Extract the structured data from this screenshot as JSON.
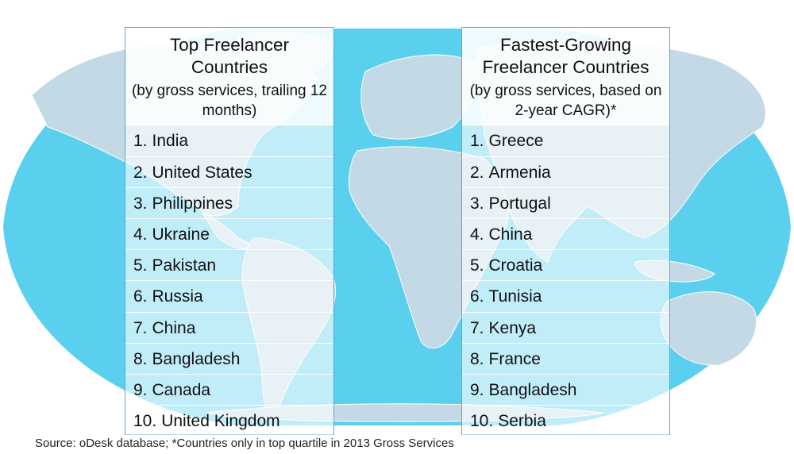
{
  "colors": {
    "ocean": "#5ad0ee",
    "land": "#c3d9e5",
    "panel_border": "#5aa6d6"
  },
  "left_panel": {
    "title": "Top Freelancer Countries",
    "subtitle": "(by gross services, trailing 12 months)",
    "items": [
      {
        "rank": "1.",
        "country": "India"
      },
      {
        "rank": "2.",
        "country": "United States"
      },
      {
        "rank": "3.",
        "country": "Philippines"
      },
      {
        "rank": "4.",
        "country": "Ukraine"
      },
      {
        "rank": "5.",
        "country": "Pakistan"
      },
      {
        "rank": "6.",
        "country": "Russia"
      },
      {
        "rank": "7.",
        "country": "China"
      },
      {
        "rank": "8.",
        "country": "Bangladesh"
      },
      {
        "rank": "9.",
        "country": "Canada"
      },
      {
        "rank": "10.",
        "country": "United Kingdom"
      }
    ]
  },
  "right_panel": {
    "title": "Fastest-Growing Freelancer Countries",
    "subtitle": "(by gross services, based on 2-year CAGR)*",
    "items": [
      {
        "rank": "1.",
        "country": "Greece"
      },
      {
        "rank": "2.",
        "country": "Armenia"
      },
      {
        "rank": "3.",
        "country": "Portugal"
      },
      {
        "rank": "4.",
        "country": "China"
      },
      {
        "rank": "5.",
        "country": "Croatia"
      },
      {
        "rank": "6.",
        "country": "Tunisia"
      },
      {
        "rank": "7.",
        "country": "Kenya"
      },
      {
        "rank": "8.",
        "country": "France"
      },
      {
        "rank": "9.",
        "country": "Bangladesh"
      },
      {
        "rank": "10.",
        "country": "Serbia"
      }
    ]
  },
  "source_note": "Source: oDesk database; *Countries only in top quartile in 2013 Gross Services"
}
